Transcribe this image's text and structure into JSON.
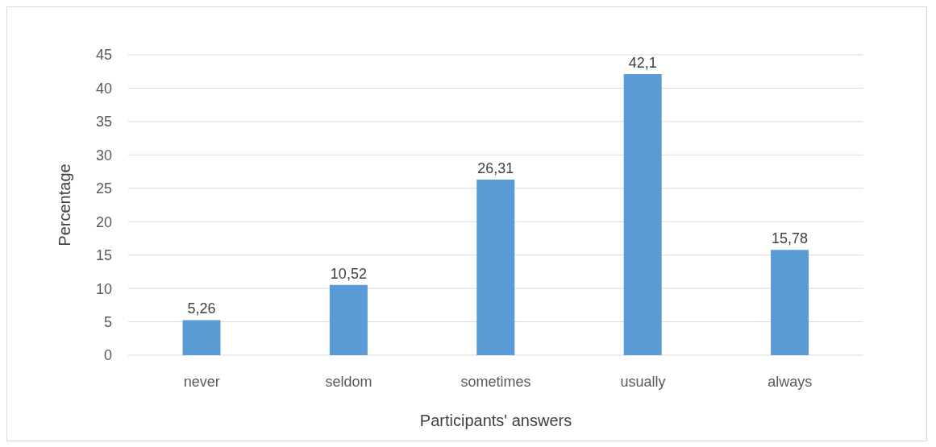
{
  "chart_data": {
    "type": "bar",
    "xlabel": "Participants' answers",
    "ylabel": "Percentage",
    "categories": [
      "never",
      "seldom",
      "sometimes",
      "usually",
      "always"
    ],
    "values": [
      5.26,
      10.52,
      26.31,
      42.1,
      15.78
    ],
    "color": "#5b9bd5",
    "value_labels": [
      "5,26",
      "10,52",
      "26,31",
      "42,1",
      "15,78"
    ],
    "ylim": [
      0,
      45
    ],
    "yticks": [
      0,
      5,
      10,
      15,
      20,
      25,
      30,
      35,
      40,
      45
    ],
    "grid": "y"
  }
}
